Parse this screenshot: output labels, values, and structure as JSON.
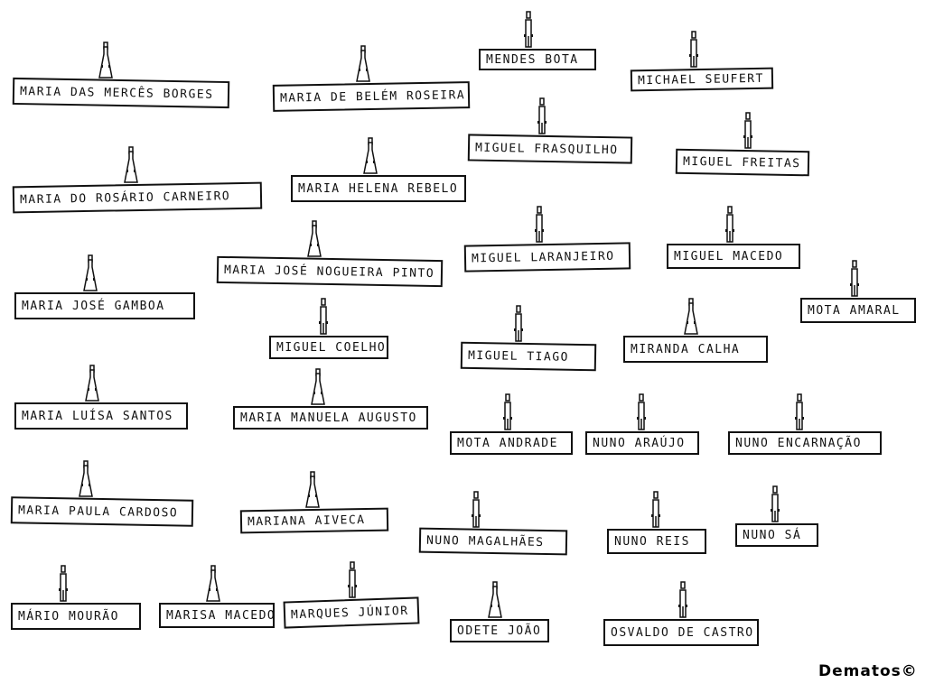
{
  "labels": [
    "Maria das Mercês Borges",
    "Maria de Belém Roseira",
    "Mendes Bota",
    "Michael Seufert",
    "Miguel Frasquilho",
    "Miguel Freitas",
    "Maria do Rosário Carneiro",
    "Maria Helena Rebelo",
    "Miguel Laranjeiro",
    "Miguel Macedo",
    "Maria José Nogueira Pinto",
    "Mota Amaral",
    "Maria José Gamboa",
    "Miguel Coelho",
    "Miguel Tiago",
    "Miranda Calha",
    "Maria Luísa Santos",
    "Maria Manuela Augusto",
    "Mota Andrade",
    "Nuno Araújo",
    "Nuno Encarnação",
    "Maria Paula Cardoso",
    "Mariana Aiveca",
    "Nuno Magalhães",
    "Nuno Reis",
    "Nuno Sá",
    "Mário Mourão",
    "Marisa Macedo",
    "Marques Júnior",
    "Odete João",
    "Osvaldo de Castro"
  ],
  "signature": "Dematos©"
}
